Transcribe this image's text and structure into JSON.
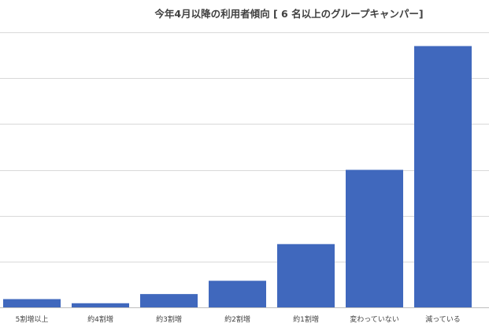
{
  "chart_data": {
    "type": "bar",
    "title": "今年4月以降の利用者傾向 [ 6 名以上のグループキャンパー]",
    "categories": [
      "5割増以上",
      "約4割増",
      "約3割増",
      "約2割増",
      "約1割増",
      "変わっていない",
      "減っている"
    ],
    "values": [
      1.8,
      0.9,
      2.9,
      5.8,
      13.8,
      30.0,
      57.0
    ],
    "ylim": [
      0,
      60
    ],
    "yticks": [
      0,
      10,
      20,
      30,
      40,
      50,
      60
    ],
    "ytick_labels_visible": false,
    "grid": true,
    "legend": "none",
    "bar_color": "#4068bd",
    "xlabel": "",
    "ylabel": ""
  }
}
